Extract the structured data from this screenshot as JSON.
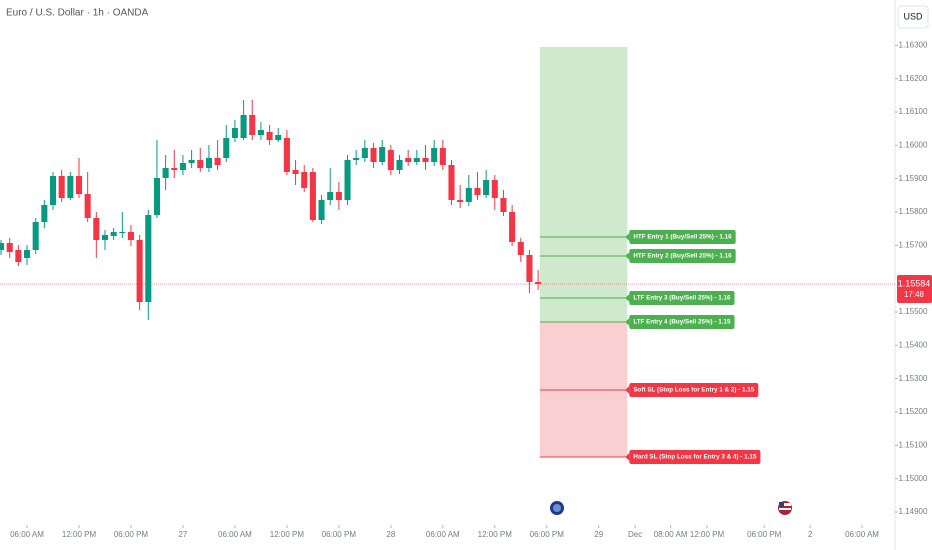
{
  "chart_data": {
    "type": "candlestick",
    "title": "Euro / U.S. Dollar · 1h · OANDA",
    "currency": "USD",
    "up_color": "#089981",
    "down_color": "#f23645",
    "ylim": [
      1.14861,
      1.16436
    ],
    "yticks": [
      {
        "value": 1.163,
        "label": "1.16300"
      },
      {
        "value": 1.162,
        "label": "1.16200"
      },
      {
        "value": 1.161,
        "label": "1.16100"
      },
      {
        "value": 1.16,
        "label": "1.16000"
      },
      {
        "value": 1.159,
        "label": "1.15900"
      },
      {
        "value": 1.158,
        "label": "1.15800"
      },
      {
        "value": 1.157,
        "label": "1.15700"
      },
      {
        "value": 1.155,
        "label": "1.15500"
      },
      {
        "value": 1.154,
        "label": "1.15400"
      },
      {
        "value": 1.153,
        "label": "1.15300"
      },
      {
        "value": 1.152,
        "label": "1.15200"
      },
      {
        "value": 1.151,
        "label": "1.15100"
      },
      {
        "value": 1.15,
        "label": "1.15000"
      },
      {
        "value": 1.149,
        "label": "1.14900"
      }
    ],
    "xlim": [
      -0.12,
      103.2
    ],
    "xticks": [
      {
        "value": 3,
        "label": "06:00 AM"
      },
      {
        "value": 9,
        "label": "12:00 PM"
      },
      {
        "value": 15,
        "label": "06:00 PM"
      },
      {
        "value": 21,
        "label": "27"
      },
      {
        "value": 27,
        "label": "06:00 AM"
      },
      {
        "value": 33,
        "label": "12:00 PM"
      },
      {
        "value": 39,
        "label": "06:00 PM"
      },
      {
        "value": 45,
        "label": "28"
      },
      {
        "value": 51,
        "label": "06:00 AM"
      },
      {
        "value": 57,
        "label": "12:00 PM"
      },
      {
        "value": 63,
        "label": "06:00 PM"
      },
      {
        "value": 69,
        "label": "29"
      },
      {
        "value": 73.2,
        "label": "Dec"
      },
      {
        "value": 77.3,
        "label": "08:00 AM"
      },
      {
        "value": 81.5,
        "label": "12:00 PM"
      },
      {
        "value": 88.1,
        "label": "06:00 PM"
      },
      {
        "value": 93.4,
        "label": "2"
      },
      {
        "value": 99.4,
        "label": "06:00 AM"
      }
    ],
    "candles": [
      {
        "open": 1.15686,
        "high": 1.15716,
        "low": 1.15671,
        "close": 1.15707
      },
      {
        "open": 1.15707,
        "high": 1.15722,
        "low": 1.15662,
        "close": 1.1568
      },
      {
        "open": 1.15686,
        "high": 1.15701,
        "low": 1.15638,
        "close": 1.1565
      },
      {
        "open": 1.15662,
        "high": 1.15701,
        "low": 1.15641,
        "close": 1.15686
      },
      {
        "open": 1.15686,
        "high": 1.15782,
        "low": 1.15674,
        "close": 1.1577
      },
      {
        "open": 1.1577,
        "high": 1.15836,
        "low": 1.15752,
        "close": 1.15821
      },
      {
        "open": 1.15821,
        "high": 1.1592,
        "low": 1.15806,
        "close": 1.15908
      },
      {
        "open": 1.15908,
        "high": 1.15926,
        "low": 1.1583,
        "close": 1.15842
      },
      {
        "open": 1.15842,
        "high": 1.1592,
        "low": 1.15836,
        "close": 1.15908
      },
      {
        "open": 1.15908,
        "high": 1.15962,
        "low": 1.15842,
        "close": 1.15854
      },
      {
        "open": 1.15854,
        "high": 1.1592,
        "low": 1.1577,
        "close": 1.15782
      },
      {
        "open": 1.15782,
        "high": 1.158,
        "low": 1.15662,
        "close": 1.15716
      },
      {
        "open": 1.15716,
        "high": 1.15746,
        "low": 1.15686,
        "close": 1.15731
      },
      {
        "open": 1.15728,
        "high": 1.15752,
        "low": 1.15716,
        "close": 1.1574
      },
      {
        "open": 1.15737,
        "high": 1.158,
        "low": 1.15722,
        "close": 1.1574
      },
      {
        "open": 1.1574,
        "high": 1.15761,
        "low": 1.15698,
        "close": 1.15716
      },
      {
        "open": 1.15716,
        "high": 1.15731,
        "low": 1.15506,
        "close": 1.1553
      },
      {
        "open": 1.1553,
        "high": 1.15806,
        "low": 1.15476,
        "close": 1.15791
      },
      {
        "open": 1.15791,
        "high": 1.16016,
        "low": 1.15782,
        "close": 1.15902
      },
      {
        "open": 1.15902,
        "high": 1.15971,
        "low": 1.15866,
        "close": 1.15932
      },
      {
        "open": 1.15932,
        "high": 1.15986,
        "low": 1.15902,
        "close": 1.15926
      },
      {
        "open": 1.15926,
        "high": 1.15971,
        "low": 1.15911,
        "close": 1.15947
      },
      {
        "open": 1.15947,
        "high": 1.15986,
        "low": 1.15932,
        "close": 1.15956
      },
      {
        "open": 1.15956,
        "high": 1.15992,
        "low": 1.1592,
        "close": 1.15932
      },
      {
        "open": 1.15932,
        "high": 1.16001,
        "low": 1.1592,
        "close": 1.15962
      },
      {
        "open": 1.15962,
        "high": 1.16016,
        "low": 1.15926,
        "close": 1.15941
      },
      {
        "open": 1.15962,
        "high": 1.16061,
        "low": 1.1595,
        "close": 1.16022
      },
      {
        "open": 1.16022,
        "high": 1.16076,
        "low": 1.1601,
        "close": 1.16052
      },
      {
        "open": 1.16022,
        "high": 1.16136,
        "low": 1.16016,
        "close": 1.16091
      },
      {
        "open": 1.16091,
        "high": 1.16136,
        "low": 1.16016,
        "close": 1.16031
      },
      {
        "open": 1.16031,
        "high": 1.1607,
        "low": 1.16016,
        "close": 1.16046
      },
      {
        "open": 1.1604,
        "high": 1.16061,
        "low": 1.16001,
        "close": 1.16016
      },
      {
        "open": 1.16016,
        "high": 1.16052,
        "low": 1.1601,
        "close": 1.16031
      },
      {
        "open": 1.16022,
        "high": 1.16046,
        "low": 1.15911,
        "close": 1.1592
      },
      {
        "open": 1.15926,
        "high": 1.15956,
        "low": 1.15881,
        "close": 1.15914
      },
      {
        "open": 1.1592,
        "high": 1.15941,
        "low": 1.1586,
        "close": 1.15872
      },
      {
        "open": 1.1592,
        "high": 1.15932,
        "low": 1.1577,
        "close": 1.15776
      },
      {
        "open": 1.15776,
        "high": 1.15851,
        "low": 1.15764,
        "close": 1.15836
      },
      {
        "open": 1.15836,
        "high": 1.15932,
        "low": 1.15821,
        "close": 1.1586
      },
      {
        "open": 1.1586,
        "high": 1.1589,
        "low": 1.15806,
        "close": 1.15836
      },
      {
        "open": 1.15836,
        "high": 1.15971,
        "low": 1.15821,
        "close": 1.15956
      },
      {
        "open": 1.15956,
        "high": 1.15986,
        "low": 1.15941,
        "close": 1.15962
      },
      {
        "open": 1.15962,
        "high": 1.16016,
        "low": 1.1595,
        "close": 1.15992
      },
      {
        "open": 1.15992,
        "high": 1.16007,
        "low": 1.15932,
        "close": 1.1595
      },
      {
        "open": 1.1595,
        "high": 1.16016,
        "low": 1.15941,
        "close": 1.15995
      },
      {
        "open": 1.15986,
        "high": 1.16001,
        "low": 1.15911,
        "close": 1.15926
      },
      {
        "open": 1.15926,
        "high": 1.15971,
        "low": 1.15914,
        "close": 1.15956
      },
      {
        "open": 1.15962,
        "high": 1.15986,
        "low": 1.15938,
        "close": 1.1595
      },
      {
        "open": 1.1595,
        "high": 1.15986,
        "low": 1.15941,
        "close": 1.15962
      },
      {
        "open": 1.15962,
        "high": 1.16001,
        "low": 1.15926,
        "close": 1.1595
      },
      {
        "open": 1.1595,
        "high": 1.16016,
        "low": 1.15938,
        "close": 1.15992
      },
      {
        "open": 1.15992,
        "high": 1.16016,
        "low": 1.15926,
        "close": 1.15941
      },
      {
        "open": 1.15941,
        "high": 1.15956,
        "low": 1.15821,
        "close": 1.15836
      },
      {
        "open": 1.15836,
        "high": 1.15881,
        "low": 1.15812,
        "close": 1.1583
      },
      {
        "open": 1.1583,
        "high": 1.15911,
        "low": 1.15818,
        "close": 1.15872
      },
      {
        "open": 1.15872,
        "high": 1.1592,
        "low": 1.15836,
        "close": 1.15851
      },
      {
        "open": 1.15851,
        "high": 1.15926,
        "low": 1.15842,
        "close": 1.15896
      },
      {
        "open": 1.15896,
        "high": 1.15911,
        "low": 1.15806,
        "close": 1.15842
      },
      {
        "open": 1.15842,
        "high": 1.15866,
        "low": 1.15788,
        "close": 1.158
      },
      {
        "open": 1.158,
        "high": 1.15821,
        "low": 1.15698,
        "close": 1.1571
      },
      {
        "open": 1.1571,
        "high": 1.15722,
        "low": 1.1565,
        "close": 1.15671
      },
      {
        "open": 1.15671,
        "high": 1.15686,
        "low": 1.15557,
        "close": 1.1559
      },
      {
        "open": 1.1559,
        "high": 1.15626,
        "low": 1.15566,
        "close": 1.15584
      }
    ],
    "last_price": 1.15584,
    "countdown": "17:48",
    "last_price_color": "#f23645",
    "position": {
      "x_start": 62.2,
      "x_end": 72.3,
      "top": 1.16295,
      "entry": 1.1547,
      "bottom": 1.15065,
      "profit_color": "#cfe9cd",
      "loss_color": "#f9cfd2"
    },
    "levels": [
      {
        "label": "HTF Entry 1 (Buy/Sell 25%) - 1.16",
        "price": 1.15725,
        "color": "#4caf50"
      },
      {
        "label": "HTF Entry 2 (Buy/Sell 25%) - 1.16",
        "price": 1.15668,
        "color": "#4caf50"
      },
      {
        "label": "LTF Entry 3 (Buy/Sell 25%) - 1.16",
        "price": 1.15542,
        "color": "#4caf50"
      },
      {
        "label": "LTF Entry 4 (Buy/Sell 25%) - 1.15",
        "price": 1.1547,
        "color": "#4caf50"
      },
      {
        "label": "Soft SL (Stop Loss for Entry 1 & 2) - 1.15",
        "price": 1.15266,
        "color": "#f23645"
      },
      {
        "label": "Hard SL (Stop Loss for Entry 3 & 4) - 1.15",
        "price": 1.15065,
        "color": "#f23645"
      }
    ]
  }
}
